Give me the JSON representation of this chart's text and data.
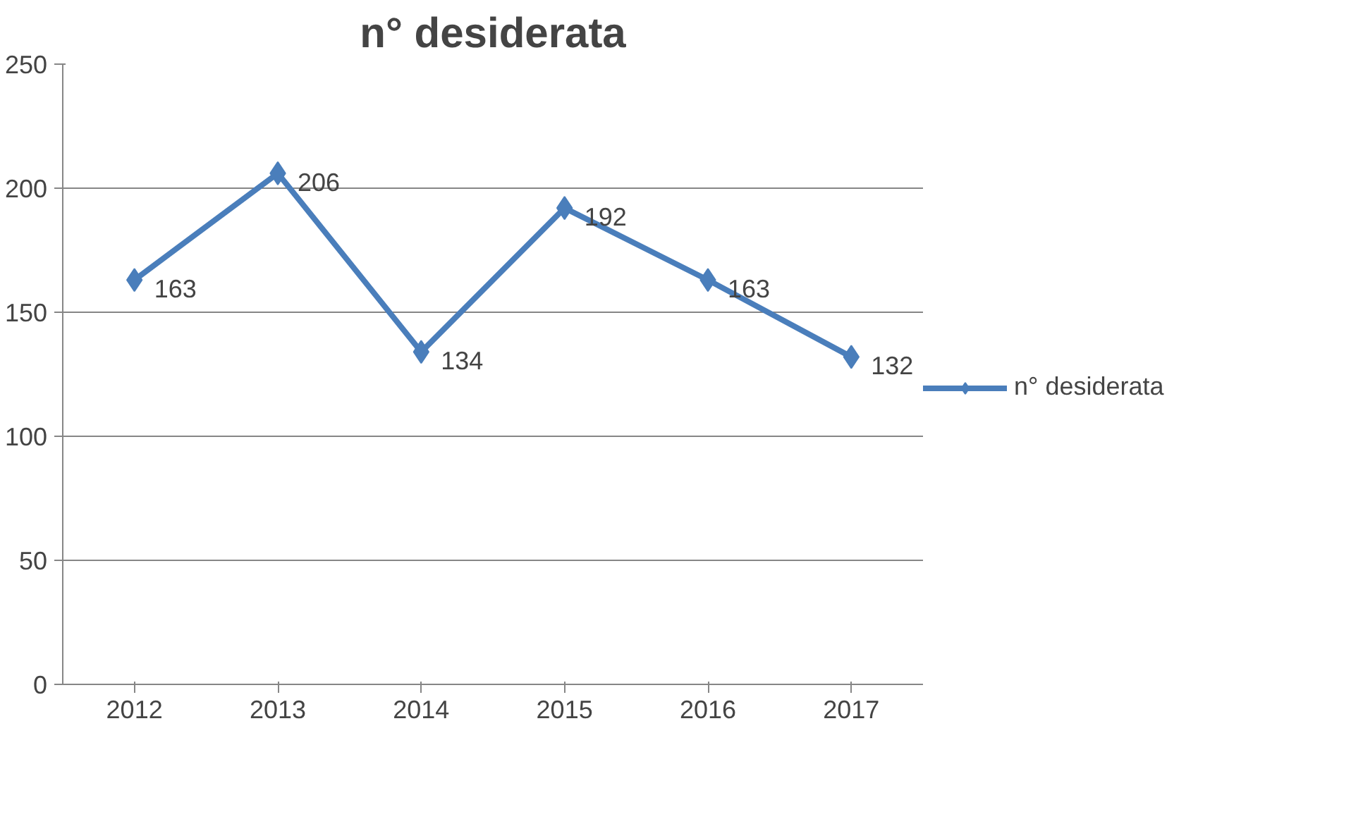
{
  "chart_data": {
    "type": "line",
    "title": "n° desiderata",
    "categories": [
      "2012",
      "2013",
      "2014",
      "2015",
      "2016",
      "2017"
    ],
    "series": [
      {
        "name": "n° desiderata",
        "color": "#4a7ebb",
        "values": [
          163,
          206,
          134,
          192,
          163,
          132
        ]
      }
    ],
    "ylim": [
      0,
      250
    ],
    "yticks": [
      0,
      50,
      100,
      150,
      200,
      250
    ],
    "grid": "y",
    "legend": "right",
    "marker": "diamond",
    "line_style": "solid",
    "data_labels": true
  }
}
